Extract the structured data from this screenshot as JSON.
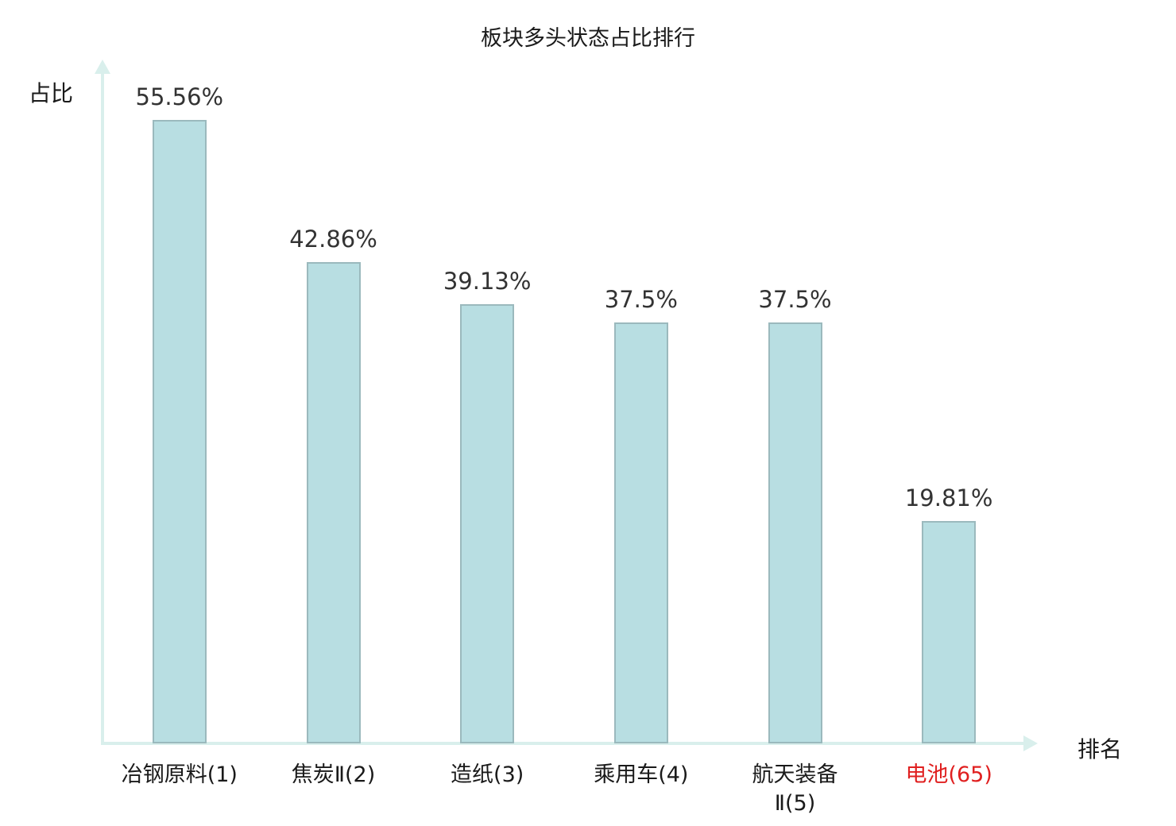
{
  "chart_data": {
    "type": "bar",
    "title": "板块多头状态占比排行",
    "xlabel": "排名",
    "ylabel": "占比",
    "categories": [
      "冶钢原料(1)",
      "焦炭Ⅱ(2)",
      "造纸(3)",
      "乘用车(4)",
      "航天装备\nⅡ(5)",
      "电池(65)"
    ],
    "values": [
      55.56,
      42.86,
      39.13,
      37.5,
      37.5,
      19.81
    ],
    "value_labels": [
      "55.56%",
      "42.86%",
      "39.13%",
      "37.5%",
      "37.5%",
      "19.81%"
    ],
    "ylim": [
      0,
      60
    ],
    "grid": false,
    "legend": "none",
    "highlight_index": 5,
    "colors": {
      "bar_fill": "#b8dee2",
      "bar_border": "#9bb9bd",
      "axis": "#d9efec",
      "text": "#333333",
      "highlight_label": "#e02020"
    }
  }
}
